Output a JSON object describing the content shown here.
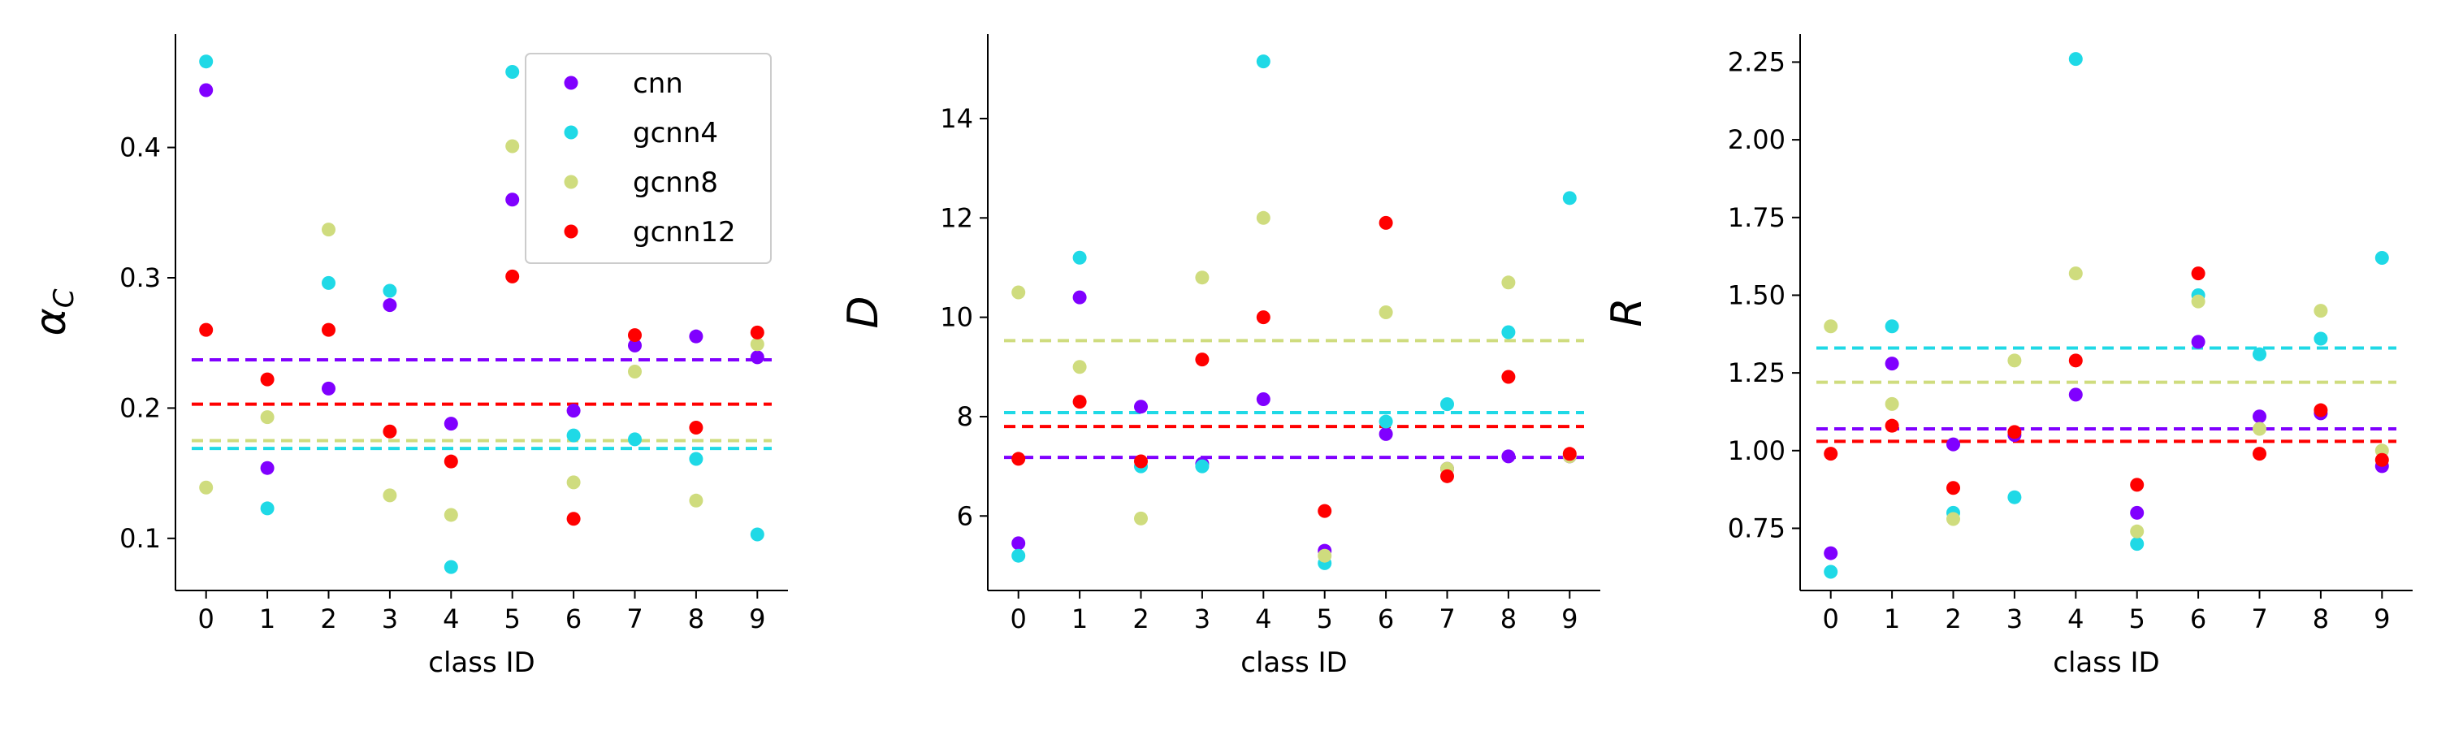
{
  "colors": {
    "cnn": "#8000ff",
    "gcnn4": "#1fd9e6",
    "gcnn8": "#cfdc7e",
    "gcnn12": "#ff0000"
  },
  "chart_data": [
    {
      "type": "scatter",
      "xlabel": "class ID",
      "ylabel": "α",
      "ylabel_sub": "C",
      "x": [
        0,
        1,
        2,
        3,
        4,
        5,
        6,
        7,
        8,
        9
      ],
      "xlim": [
        -0.5,
        9.5
      ],
      "ylim": [
        0.06,
        0.487
      ],
      "yticks": [
        0.1,
        0.2,
        0.3,
        0.4
      ],
      "ytick_labels": [
        "0.1",
        "0.2",
        "0.3",
        "0.4"
      ],
      "legend": "top-right",
      "series": [
        {
          "name": "cnn",
          "color": "#8000ff",
          "values": [
            0.444,
            0.154,
            0.215,
            0.279,
            0.188,
            0.36,
            0.198,
            0.248,
            0.255,
            0.239
          ],
          "mean": 0.237
        },
        {
          "name": "gcnn4",
          "color": "#1fd9e6",
          "values": [
            0.466,
            0.123,
            0.296,
            0.29,
            0.078,
            0.458,
            0.179,
            0.176,
            0.161,
            0.103
          ],
          "mean": 0.169
        },
        {
          "name": "gcnn8",
          "color": "#cfdc7e",
          "values": [
            0.139,
            0.193,
            0.337,
            0.133,
            0.118,
            0.401,
            0.143,
            0.228,
            0.129,
            0.249
          ],
          "mean": 0.175
        },
        {
          "name": "gcnn12",
          "color": "#ff0000",
          "values": [
            0.26,
            0.222,
            0.26,
            0.182,
            0.159,
            0.301,
            0.115,
            0.256,
            0.185,
            0.258
          ],
          "mean": 0.203
        }
      ]
    },
    {
      "type": "scatter",
      "xlabel": "class ID",
      "ylabel": "D",
      "x": [
        0,
        1,
        2,
        3,
        4,
        5,
        6,
        7,
        8,
        9
      ],
      "xlim": [
        -0.5,
        9.5
      ],
      "ylim": [
        4.5,
        15.7
      ],
      "yticks": [
        6,
        8,
        10,
        12,
        14
      ],
      "ytick_labels": [
        "6",
        "8",
        "10",
        "12",
        "14"
      ],
      "series": [
        {
          "name": "cnn",
          "color": "#8000ff",
          "values": [
            5.45,
            10.4,
            8.2,
            7.05,
            8.35,
            5.3,
            7.65,
            6.95,
            7.2,
            7.2
          ],
          "mean": 7.18
        },
        {
          "name": "gcnn4",
          "color": "#1fd9e6",
          "values": [
            5.2,
            11.2,
            7.0,
            7.0,
            15.15,
            5.05,
            7.9,
            8.25,
            9.7,
            12.4
          ],
          "mean": 8.08
        },
        {
          "name": "gcnn8",
          "color": "#cfdc7e",
          "values": [
            10.5,
            9.0,
            5.95,
            10.8,
            12.0,
            5.2,
            10.1,
            6.95,
            10.7,
            7.2
          ],
          "mean": 9.53
        },
        {
          "name": "gcnn12",
          "color": "#ff0000",
          "values": [
            7.15,
            8.3,
            7.1,
            9.15,
            10.0,
            6.1,
            11.9,
            6.8,
            8.8,
            7.25
          ],
          "mean": 7.8
        }
      ]
    },
    {
      "type": "scatter",
      "xlabel": "class ID",
      "ylabel": "R",
      "x": [
        0,
        1,
        2,
        3,
        4,
        5,
        6,
        7,
        8,
        9
      ],
      "xlim": [
        -0.5,
        9.5
      ],
      "ylim": [
        0.55,
        2.34
      ],
      "yticks": [
        0.75,
        1.0,
        1.25,
        1.5,
        1.75,
        2.0,
        2.25
      ],
      "ytick_labels": [
        "0.75",
        "1.00",
        "1.25",
        "1.50",
        "1.75",
        "2.00",
        "2.25"
      ],
      "series": [
        {
          "name": "cnn",
          "color": "#8000ff",
          "values": [
            0.67,
            1.28,
            1.02,
            1.05,
            1.18,
            0.8,
            1.35,
            1.11,
            1.12,
            0.95
          ],
          "mean": 1.07
        },
        {
          "name": "gcnn4",
          "color": "#1fd9e6",
          "values": [
            0.61,
            1.4,
            0.8,
            0.85,
            2.26,
            0.7,
            1.5,
            1.31,
            1.36,
            1.62
          ],
          "mean": 1.33
        },
        {
          "name": "gcnn8",
          "color": "#cfdc7e",
          "values": [
            1.4,
            1.15,
            0.78,
            1.29,
            1.57,
            0.74,
            1.48,
            1.07,
            1.45,
            1.0
          ],
          "mean": 1.22
        },
        {
          "name": "gcnn12",
          "color": "#ff0000",
          "values": [
            0.99,
            1.08,
            0.88,
            1.06,
            1.29,
            0.89,
            1.57,
            0.99,
            1.13,
            0.97
          ],
          "mean": 1.03
        }
      ]
    }
  ]
}
